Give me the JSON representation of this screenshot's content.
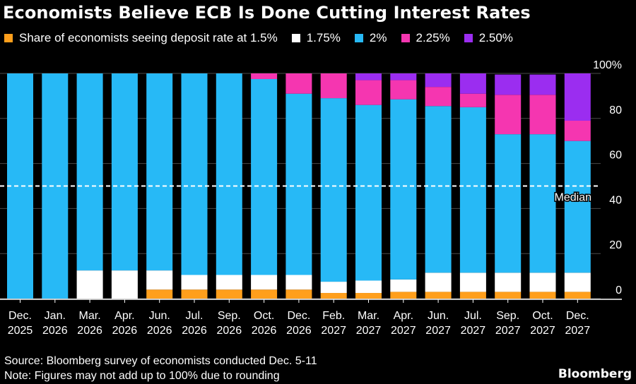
{
  "title": "Economists Believe ECB Is Done Cutting Interest Rates",
  "legend": [
    {
      "label": "Share of economists seeing deposit rate at 1.5%",
      "color": "#ff9f1c"
    },
    {
      "label": "1.75%",
      "color": "#ffffff"
    },
    {
      "label": "2%",
      "color": "#27b9f6"
    },
    {
      "label": "2.25%",
      "color": "#f536b0"
    },
    {
      "label": "2.50%",
      "color": "#9b2df0"
    }
  ],
  "footer": {
    "source": "Source: Bloomberg survey of economists conducted Dec. 5-11",
    "note": "Note: Figures may not add up to 100% due to rounding",
    "brand": "Bloomberg"
  },
  "chart_data": {
    "type": "bar",
    "stacked": true,
    "categories": [
      [
        "Dec.",
        "2025"
      ],
      [
        "Jan.",
        "2026"
      ],
      [
        "Mar.",
        "2026"
      ],
      [
        "Apr.",
        "2026"
      ],
      [
        "Jun.",
        "2026"
      ],
      [
        "Jul.",
        "2026"
      ],
      [
        "Sep.",
        "2026"
      ],
      [
        "Oct.",
        "2026"
      ],
      [
        "Dec.",
        "2026"
      ],
      [
        "Feb.",
        "2027"
      ],
      [
        "Mar.",
        "2027"
      ],
      [
        "Apr.",
        "2027"
      ],
      [
        "Jun.",
        "2027"
      ],
      [
        "Jul.",
        "2027"
      ],
      [
        "Sep.",
        "2027"
      ],
      [
        "Oct.",
        "2027"
      ],
      [
        "Dec.",
        "2027"
      ]
    ],
    "series": [
      {
        "name": "1.5%",
        "color": "#ff9f1c",
        "values": [
          0,
          0,
          0,
          0,
          4,
          4,
          4,
          4,
          4,
          2.5,
          2.5,
          3,
          3,
          3,
          3,
          3,
          3
        ]
      },
      {
        "name": "1.75%",
        "color": "#ffffff",
        "values": [
          0,
          0,
          12.5,
          12.5,
          8.5,
          6.5,
          6.5,
          6.5,
          6.5,
          5,
          5.5,
          5.5,
          8.5,
          8.5,
          8.5,
          8.5,
          8.5
        ]
      },
      {
        "name": "2%",
        "color": "#27b9f6",
        "values": [
          100,
          100,
          87.5,
          87.5,
          87.5,
          89.5,
          89.5,
          87,
          80.5,
          81.5,
          78,
          80,
          74,
          73.5,
          61.5,
          61.5,
          58.5
        ]
      },
      {
        "name": "2.25%",
        "color": "#f536b0",
        "values": [
          0,
          0,
          0,
          0,
          0,
          0,
          0,
          2.5,
          9,
          11,
          11,
          8.5,
          8.5,
          6,
          17.5,
          17.5,
          9
        ]
      },
      {
        "name": "2.50%",
        "color": "#9b2df0",
        "values": [
          0,
          0,
          0,
          0,
          0,
          0,
          0,
          0,
          0,
          0,
          3,
          3,
          6,
          9,
          9,
          9,
          21
        ]
      }
    ],
    "ylim": [
      0,
      100
    ],
    "yticks": [
      0,
      20,
      40,
      60,
      80,
      100
    ],
    "ytick_labels": [
      "0",
      "20",
      "40",
      "60",
      "80",
      "100%"
    ],
    "reference_line": {
      "value": 50,
      "label": "Median"
    },
    "y_axis_position": "right",
    "grid": true
  }
}
